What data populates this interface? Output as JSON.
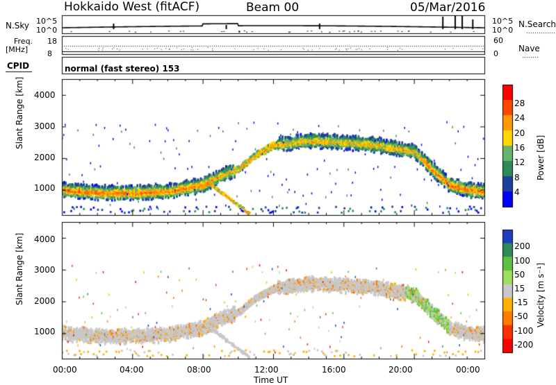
{
  "header": {
    "site": "Hokkaido West (fitACF)",
    "beam": "Beam 00",
    "date": "05/Mar/2016"
  },
  "strip": {
    "nsky_label": "N.Sky",
    "nsky_ticks": [
      "10^5",
      "10^0"
    ],
    "nsearch_label": "N.Search",
    "nsearch_ticks": [
      "10^5",
      "10^0"
    ],
    "freq_label_line1": "Freq.",
    "freq_label_line2": "[MHz]",
    "freq_ticks": [
      "18",
      "8"
    ],
    "nave_label": "Nave",
    "nave_ticks": [
      "60",
      "0"
    ],
    "cpid_label": "CPID",
    "cpid_value": "normal (fast stereo) 153"
  },
  "chart_data": [
    {
      "type": "heatmap",
      "panel": "power",
      "ylabel": "Slant Range [km]",
      "yticks": [
        "1000",
        "2000",
        "3000",
        "4000"
      ],
      "ylim": [
        200,
        4500
      ],
      "xlim_hours": [
        0,
        24
      ],
      "colorbar_label": "Power [dB]",
      "colorbar_ticks": [
        "4",
        "8",
        "12",
        "16",
        "20",
        "24",
        "28"
      ],
      "colorbar_colors": [
        "#0000ff",
        "#1f3f9f",
        "#2e8b57",
        "#69b46b",
        "#ffd700",
        "#ff9900",
        "#ff4500",
        "#ff0000"
      ],
      "echo_band": {
        "hours": [
          0,
          2,
          4,
          6,
          8,
          9,
          10,
          11,
          12,
          14,
          16,
          18,
          20,
          21,
          22,
          23,
          24
        ],
        "center_km": [
          1050,
          950,
          950,
          1000,
          1200,
          1500,
          1700,
          2150,
          2450,
          2600,
          2550,
          2450,
          2250,
          1700,
          1200,
          1050,
          1000
        ]
      }
    },
    {
      "type": "heatmap",
      "panel": "velocity",
      "ylabel": "Slant Range [km]",
      "yticks": [
        "1000",
        "2000",
        "3000",
        "4000"
      ],
      "ylim": [
        200,
        4500
      ],
      "xlim_hours": [
        0,
        24
      ],
      "colorbar_label": "Velocity [m s⁻¹]",
      "colorbar_ticks": [
        "200",
        "100",
        "50",
        "15",
        "-15",
        "-50",
        "-100",
        "-200"
      ],
      "colorbar_colors": [
        "#1f3fbf",
        "#2e8b57",
        "#5fbf3f",
        "#9fdf5f",
        "#c8c8c8",
        "#ffb000",
        "#ff7a00",
        "#ff3000",
        "#ff0000"
      ]
    }
  ],
  "xaxis": {
    "ticks": [
      "00:00",
      "04:00",
      "08:00",
      "12:00",
      "16:00",
      "20:00",
      "00:00"
    ],
    "label": "Time UT"
  }
}
